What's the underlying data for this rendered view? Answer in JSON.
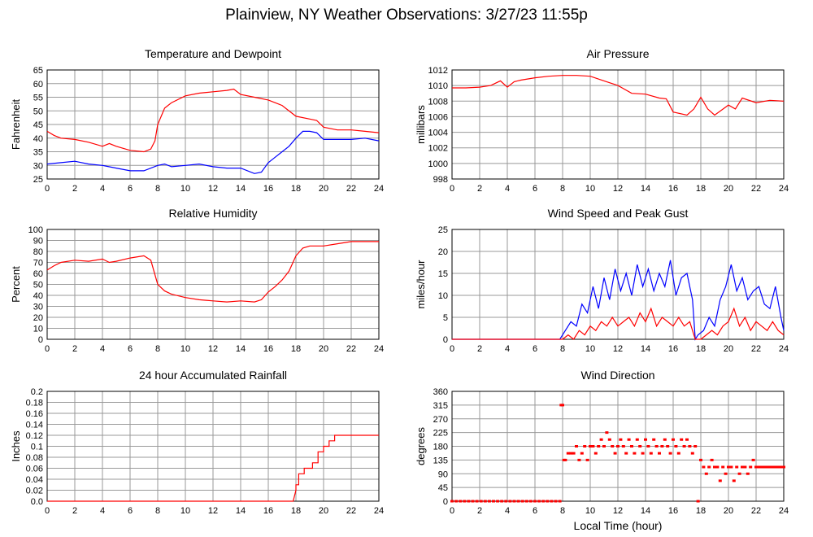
{
  "page": {
    "title": "Plainview, NY Weather Observations: 3/27/23 11:55p"
  },
  "chart_data": [
    {
      "type": "line",
      "title": "Temperature and Dewpoint",
      "xlabel": "",
      "ylabel": "Fahrenheit",
      "xlim": [
        0,
        24
      ],
      "ylim": [
        25,
        65
      ],
      "xticks": [
        0,
        2,
        4,
        6,
        8,
        10,
        12,
        14,
        16,
        18,
        20,
        22,
        24
      ],
      "yticks": [
        25,
        30,
        35,
        40,
        45,
        50,
        55,
        60,
        65
      ],
      "grid": true,
      "series": [
        {
          "color": "#ff0000",
          "x": [
            0,
            0.5,
            1,
            2,
            3,
            4,
            4.5,
            5,
            6,
            7,
            7.5,
            7.8,
            8,
            8.5,
            9,
            10,
            11,
            12,
            13,
            13.5,
            14,
            15,
            16,
            17,
            18,
            19,
            19.5,
            20,
            21,
            22,
            23,
            24
          ],
          "y": [
            42.5,
            41,
            40,
            39.5,
            38.5,
            37,
            38,
            37,
            35.5,
            35,
            36,
            39,
            45,
            51,
            53,
            55.5,
            56.5,
            57,
            57.5,
            58,
            56,
            55,
            54,
            52,
            48,
            47,
            46.5,
            44,
            43,
            43,
            42.5,
            42
          ]
        },
        {
          "color": "#0000ff",
          "x": [
            0,
            1,
            2,
            3,
            4,
            5,
            6,
            7,
            8,
            8.5,
            9,
            10,
            11,
            12,
            13,
            14,
            15,
            15.5,
            16,
            16.5,
            17,
            17.5,
            18,
            18.5,
            19,
            19.5,
            20,
            21,
            22,
            23,
            24
          ],
          "y": [
            30.5,
            31,
            31.5,
            30.5,
            30,
            29,
            28,
            28,
            30,
            30.5,
            29.5,
            30,
            30.5,
            29.5,
            29,
            29,
            27,
            27.5,
            31,
            33,
            35,
            37,
            40,
            42.5,
            42.5,
            42,
            39.5,
            39.5,
            39.5,
            40,
            39
          ]
        }
      ]
    },
    {
      "type": "line",
      "title": "Air Pressure",
      "xlabel": "",
      "ylabel": "millibars",
      "xlim": [
        0,
        24
      ],
      "ylim": [
        998,
        1012
      ],
      "xticks": [
        0,
        2,
        4,
        6,
        8,
        10,
        12,
        14,
        16,
        18,
        20,
        22,
        24
      ],
      "yticks": [
        998,
        1000,
        1002,
        1004,
        1006,
        1008,
        1010,
        1012
      ],
      "grid": true,
      "series": [
        {
          "color": "#ff0000",
          "x": [
            0,
            1,
            2,
            2.8,
            3.5,
            4,
            4.5,
            5,
            6,
            7,
            8,
            9,
            10,
            11,
            12,
            13,
            14,
            15,
            15.5,
            16,
            17,
            17.5,
            18,
            18.5,
            19,
            20,
            20.5,
            21,
            22,
            23,
            24
          ],
          "y": [
            1009.7,
            1009.7,
            1009.8,
            1010,
            1010.6,
            1009.8,
            1010.5,
            1010.7,
            1011,
            1011.2,
            1011.3,
            1011.3,
            1011.2,
            1010.6,
            1010,
            1009,
            1008.9,
            1008.4,
            1008.3,
            1006.6,
            1006.2,
            1007,
            1008.5,
            1007,
            1006.2,
            1007.5,
            1007,
            1008.4,
            1007.8,
            1008.1,
            1008
          ]
        }
      ]
    },
    {
      "type": "line",
      "title": "Relative Humidity",
      "xlabel": "",
      "ylabel": "Percent",
      "xlim": [
        0,
        24
      ],
      "ylim": [
        0,
        100
      ],
      "xticks": [
        0,
        2,
        4,
        6,
        8,
        10,
        12,
        14,
        16,
        18,
        20,
        22,
        24
      ],
      "yticks": [
        0,
        10,
        20,
        30,
        40,
        50,
        60,
        70,
        80,
        90,
        100
      ],
      "grid": true,
      "series": [
        {
          "color": "#ff0000",
          "x": [
            0,
            0.5,
            1,
            2,
            3,
            4,
            4.5,
            5,
            6,
            7,
            7.5,
            8,
            8.5,
            9,
            10,
            11,
            12,
            13,
            14,
            15,
            15.5,
            16,
            16.5,
            17,
            17.5,
            18,
            18.5,
            19,
            20,
            21,
            22,
            23,
            24
          ],
          "y": [
            63,
            67,
            70,
            72,
            71,
            73,
            70,
            71,
            74,
            76,
            72,
            50,
            44,
            41,
            38,
            36,
            35,
            34,
            35,
            34,
            36,
            43,
            48,
            54,
            62,
            76,
            83,
            85,
            85,
            87,
            89,
            89,
            89
          ]
        }
      ]
    },
    {
      "type": "line",
      "title": "Wind Speed and Peak Gust",
      "xlabel": "",
      "ylabel": "miles/hour",
      "xlim": [
        0,
        24
      ],
      "ylim": [
        0,
        25
      ],
      "xticks": [
        0,
        2,
        4,
        6,
        8,
        10,
        12,
        14,
        16,
        18,
        20,
        22,
        24
      ],
      "yticks": [
        0,
        5,
        10,
        15,
        20,
        25
      ],
      "grid": true,
      "series": [
        {
          "color": "#0000ff",
          "x": [
            0,
            7.8,
            8.2,
            8.6,
            9,
            9.4,
            9.8,
            10.2,
            10.6,
            11,
            11.4,
            11.8,
            12.2,
            12.6,
            13,
            13.4,
            13.8,
            14.2,
            14.6,
            15,
            15.4,
            15.8,
            16.2,
            16.6,
            17,
            17.4,
            17.6,
            17.8,
            18.2,
            18.6,
            19,
            19.4,
            19.8,
            20.2,
            20.6,
            21,
            21.4,
            21.8,
            22.2,
            22.6,
            23,
            23.4,
            23.8,
            24
          ],
          "y": [
            0,
            0,
            2,
            4,
            3,
            8,
            6,
            12,
            7,
            14,
            9,
            16,
            11,
            15,
            10,
            17,
            12,
            16,
            11,
            15,
            12,
            18,
            10,
            14,
            15,
            9,
            0,
            1,
            2,
            5,
            3,
            9,
            12,
            17,
            11,
            14,
            9,
            11,
            12,
            8,
            7,
            12,
            5,
            2
          ]
        },
        {
          "color": "#ff0000",
          "x": [
            0,
            8,
            8.4,
            8.8,
            9.2,
            9.6,
            10,
            10.4,
            10.8,
            11.2,
            11.6,
            12,
            12.4,
            12.8,
            13.2,
            13.6,
            14,
            14.4,
            14.8,
            15.2,
            15.6,
            16,
            16.4,
            16.8,
            17.2,
            17.6,
            18,
            18.4,
            18.8,
            19.2,
            19.6,
            20,
            20.4,
            20.8,
            21.2,
            21.6,
            22,
            22.4,
            22.8,
            23.2,
            23.6,
            24
          ],
          "y": [
            0,
            0,
            1,
            0,
            2,
            1,
            3,
            2,
            4,
            3,
            5,
            3,
            4,
            5,
            3,
            6,
            4,
            7,
            3,
            5,
            4,
            3,
            5,
            3,
            4,
            0,
            0,
            1,
            2,
            1,
            3,
            4,
            7,
            3,
            5,
            2,
            4,
            3,
            2,
            4,
            2,
            1
          ]
        }
      ]
    },
    {
      "type": "line",
      "title": "24 hour Accumulated Rainfall",
      "xlabel": "",
      "ylabel": "Inches",
      "xlim": [
        0,
        24
      ],
      "ylim": [
        0,
        0.2
      ],
      "xticks": [
        0,
        2,
        4,
        6,
        8,
        10,
        12,
        14,
        16,
        18,
        20,
        22,
        24
      ],
      "yticks": [
        0.0,
        0.02,
        0.04,
        0.06,
        0.08,
        0.1,
        0.12,
        0.14,
        0.16,
        0.18,
        0.2
      ],
      "ytick_labels": [
        "0.0",
        "0.02",
        "0.04",
        "0.06",
        "0.08",
        "0.1",
        "0.12",
        "0.14",
        "0.16",
        "0.18",
        "0.2"
      ],
      "grid": true,
      "series": [
        {
          "color": "#ff0000",
          "x": [
            0,
            17.8,
            18.0,
            18.0,
            18.2,
            18.2,
            18.6,
            18.6,
            19.2,
            19.2,
            19.6,
            19.6,
            20.0,
            20.0,
            20.4,
            20.4,
            20.8,
            20.8,
            21.2,
            21.2,
            24
          ],
          "y": [
            0,
            0,
            0.02,
            0.03,
            0.03,
            0.05,
            0.05,
            0.06,
            0.06,
            0.07,
            0.07,
            0.09,
            0.09,
            0.1,
            0.1,
            0.11,
            0.11,
            0.12,
            0.12,
            0.12,
            0.12
          ]
        }
      ]
    },
    {
      "type": "scatter",
      "title": "Wind Direction",
      "xlabel": "Local Time (hour)",
      "ylabel": "degrees",
      "xlim": [
        0,
        24
      ],
      "ylim": [
        0,
        360
      ],
      "xticks": [
        0,
        2,
        4,
        6,
        8,
        10,
        12,
        14,
        16,
        18,
        20,
        22,
        24
      ],
      "yticks": [
        0,
        45,
        90,
        135,
        180,
        225,
        270,
        315,
        360
      ],
      "grid": true,
      "series": [
        {
          "color": "#ff0000",
          "x": [
            0,
            0.3,
            0.6,
            0.9,
            1.2,
            1.5,
            1.8,
            2.1,
            2.4,
            2.7,
            3,
            3.3,
            3.6,
            3.9,
            4.2,
            4.5,
            4.8,
            5.1,
            5.4,
            5.7,
            6,
            6.3,
            6.6,
            6.9,
            7.2,
            7.5,
            7.8,
            7.9,
            8.0,
            8.1,
            8.2,
            8.4,
            8.6,
            8.8,
            9,
            9.2,
            9.4,
            9.6,
            9.8,
            10,
            10.2,
            10.4,
            10.6,
            10.8,
            11,
            11.2,
            11.4,
            11.6,
            11.8,
            12,
            12.2,
            12.4,
            12.6,
            12.8,
            13,
            13.2,
            13.4,
            13.6,
            13.8,
            14,
            14.2,
            14.4,
            14.6,
            14.8,
            15,
            15.2,
            15.4,
            15.6,
            15.8,
            16,
            16.2,
            16.4,
            16.6,
            16.8,
            17,
            17.2,
            17.4,
            17.6,
            17.8,
            18,
            18.2,
            18.4,
            18.6,
            18.8,
            19,
            19.2,
            19.4,
            19.6,
            19.8,
            20,
            20.2,
            20.4,
            20.6,
            20.8,
            21,
            21.2,
            21.4,
            21.6,
            21.8,
            22,
            22.2,
            22.4,
            22.6,
            22.8,
            23,
            23.2,
            23.4,
            23.6,
            23.8,
            24
          ],
          "y": [
            0,
            0,
            0,
            0,
            0,
            0,
            0,
            0,
            0,
            0,
            0,
            0,
            0,
            0,
            0,
            0,
            0,
            0,
            0,
            0,
            0,
            0,
            0,
            0,
            0,
            0,
            0,
            315,
            315,
            135,
            135,
            157,
            157,
            157,
            180,
            135,
            157,
            180,
            135,
            180,
            180,
            157,
            180,
            202,
            180,
            225,
            202,
            180,
            157,
            180,
            202,
            180,
            157,
            202,
            180,
            157,
            202,
            180,
            157,
            202,
            180,
            157,
            202,
            180,
            157,
            180,
            202,
            180,
            157,
            202,
            180,
            157,
            202,
            180,
            202,
            180,
            157,
            180,
            0,
            135,
            112,
            90,
            112,
            135,
            112,
            112,
            67,
            112,
            90,
            112,
            112,
            67,
            112,
            90,
            112,
            112,
            90,
            112,
            135,
            112,
            112,
            112,
            112,
            112,
            112,
            112,
            112,
            112,
            112,
            112
          ]
        }
      ]
    }
  ]
}
